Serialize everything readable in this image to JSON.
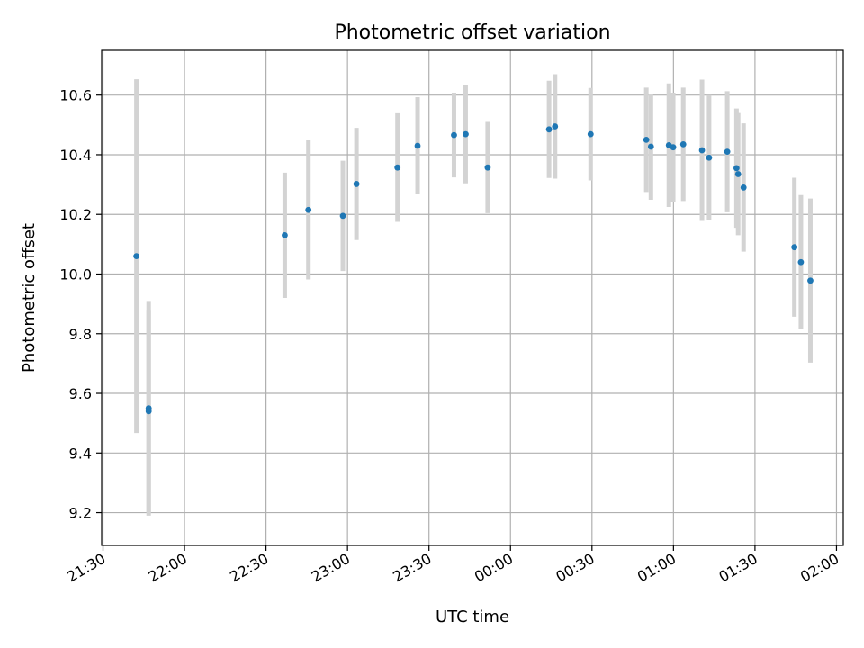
{
  "chart_data": {
    "type": "scatter",
    "title": "Photometric offset variation",
    "xlabel": "UTC time",
    "ylabel": "Photometric offset",
    "x_unit": "minutes after 21:30 UTC (dates cross midnight)",
    "xlim": [
      -0.5,
      272.5
    ],
    "ylim": [
      9.09,
      10.75
    ],
    "grid": true,
    "x_ticks": [
      {
        "label": "21:30",
        "value": 0
      },
      {
        "label": "22:00",
        "value": 30
      },
      {
        "label": "22:30",
        "value": 60
      },
      {
        "label": "23:00",
        "value": 90
      },
      {
        "label": "23:30",
        "value": 120
      },
      {
        "label": "00:00",
        "value": 150
      },
      {
        "label": "00:30",
        "value": 180
      },
      {
        "label": "01:00",
        "value": 210
      },
      {
        "label": "01:30",
        "value": 240
      },
      {
        "label": "02:00",
        "value": 270
      }
    ],
    "y_ticks": [
      "9.2",
      "9.4",
      "9.6",
      "9.8",
      "10.0",
      "10.2",
      "10.4",
      "10.6"
    ],
    "y_tick_values": [
      9.2,
      9.4,
      9.6,
      9.8,
      10.0,
      10.2,
      10.4,
      10.6
    ],
    "point_color": "#1f77b4",
    "errorbar_color": "#d3d3d3",
    "points": [
      {
        "x": 12.3,
        "y": 10.06,
        "err": 0.593
      },
      {
        "x": 16.8,
        "y": 9.55,
        "err": 0.36
      },
      {
        "x": 16.8,
        "y": 9.54,
        "err": 0.34
      },
      {
        "x": 66.9,
        "y": 10.13,
        "err": 0.21
      },
      {
        "x": 75.6,
        "y": 10.215,
        "err": 0.233
      },
      {
        "x": 88.3,
        "y": 10.195,
        "err": 0.185
      },
      {
        "x": 93.3,
        "y": 10.302,
        "err": 0.188
      },
      {
        "x": 108.4,
        "y": 10.357,
        "err": 0.182
      },
      {
        "x": 115.8,
        "y": 10.43,
        "err": 0.163
      },
      {
        "x": 129.2,
        "y": 10.466,
        "err": 0.142
      },
      {
        "x": 133.5,
        "y": 10.469,
        "err": 0.165
      },
      {
        "x": 141.6,
        "y": 10.357,
        "err": 0.153
      },
      {
        "x": 164.2,
        "y": 10.485,
        "err": 0.163
      },
      {
        "x": 166.4,
        "y": 10.495,
        "err": 0.175
      },
      {
        "x": 179.5,
        "y": 10.469,
        "err": 0.155
      },
      {
        "x": 200.0,
        "y": 10.45,
        "err": 0.175
      },
      {
        "x": 201.7,
        "y": 10.427,
        "err": 0.178
      },
      {
        "x": 208.3,
        "y": 10.432,
        "err": 0.207
      },
      {
        "x": 209.9,
        "y": 10.425,
        "err": 0.183
      },
      {
        "x": 213.6,
        "y": 10.435,
        "err": 0.19
      },
      {
        "x": 220.5,
        "y": 10.415,
        "err": 0.237
      },
      {
        "x": 223.1,
        "y": 10.39,
        "err": 0.21
      },
      {
        "x": 229.8,
        "y": 10.41,
        "err": 0.203
      },
      {
        "x": 233.2,
        "y": 10.355,
        "err": 0.2
      },
      {
        "x": 233.8,
        "y": 10.335,
        "err": 0.205
      },
      {
        "x": 235.8,
        "y": 10.29,
        "err": 0.215
      },
      {
        "x": 254.5,
        "y": 10.09,
        "err": 0.233
      },
      {
        "x": 256.9,
        "y": 10.04,
        "err": 0.225
      },
      {
        "x": 260.4,
        "y": 9.978,
        "err": 0.275
      }
    ]
  }
}
